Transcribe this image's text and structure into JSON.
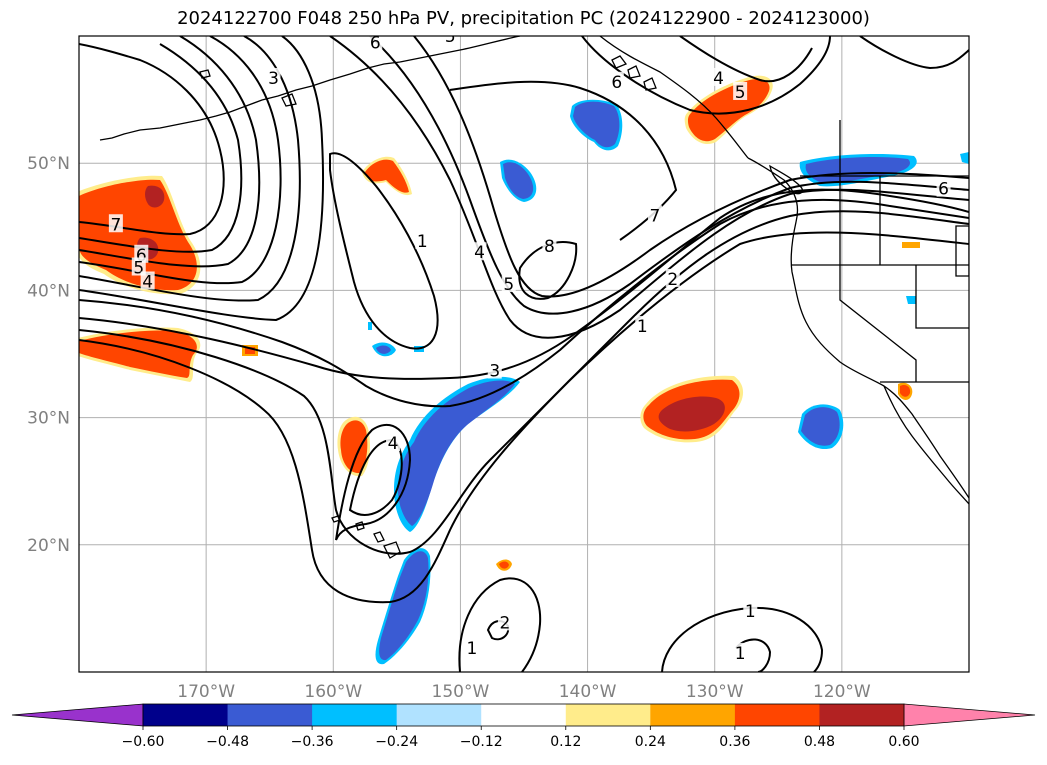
{
  "title": "2024122700 F048 250 hPa PV, precipitation PC (2024122900 - 2024123000)",
  "map": {
    "lon_range": [
      -180,
      -110
    ],
    "lat_range": [
      10,
      60
    ],
    "grid": true,
    "lat_ticks": [
      {
        "value": 20,
        "label": "20°N"
      },
      {
        "value": 30,
        "label": "30°N"
      },
      {
        "value": 40,
        "label": "40°N"
      },
      {
        "value": 50,
        "label": "50°N"
      }
    ],
    "lon_ticks": [
      {
        "value": -170,
        "label": "170°W"
      },
      {
        "value": -160,
        "label": "160°W"
      },
      {
        "value": -150,
        "label": "150°W"
      },
      {
        "value": -140,
        "label": "140°W"
      },
      {
        "value": -130,
        "label": "130°W"
      },
      {
        "value": -120,
        "label": "120°W"
      }
    ],
    "contour_labels": [
      {
        "text": "7",
        "lon": -177.1,
        "lat": 45.2
      },
      {
        "text": "6",
        "lon": -175.1,
        "lat": 42.8
      },
      {
        "text": "5",
        "lon": -175.3,
        "lat": 41.8
      },
      {
        "text": "4",
        "lon": -174.6,
        "lat": 40.7
      },
      {
        "text": "3",
        "lon": -164.7,
        "lat": 56.7
      },
      {
        "text": "6",
        "lon": -156.7,
        "lat": 59.5
      },
      {
        "text": "5",
        "lon": -150.8,
        "lat": 60.0
      },
      {
        "text": "1",
        "lon": -153.0,
        "lat": 43.9
      },
      {
        "text": "4",
        "lon": -148.5,
        "lat": 43.0
      },
      {
        "text": "5",
        "lon": -146.2,
        "lat": 40.5
      },
      {
        "text": "8",
        "lon": -143.0,
        "lat": 43.5
      },
      {
        "text": "7",
        "lon": -134.7,
        "lat": 45.9
      },
      {
        "text": "6",
        "lon": -137.7,
        "lat": 56.4
      },
      {
        "text": "4",
        "lon": -129.7,
        "lat": 56.7
      },
      {
        "text": "5",
        "lon": -128.0,
        "lat": 55.6
      },
      {
        "text": "6",
        "lon": -112.0,
        "lat": 48.0
      },
      {
        "text": "2",
        "lon": -133.3,
        "lat": 40.9
      },
      {
        "text": "1",
        "lon": -135.7,
        "lat": 37.2
      },
      {
        "text": "3",
        "lon": -147.3,
        "lat": 33.7
      },
      {
        "text": "4",
        "lon": -155.3,
        "lat": 28.0
      },
      {
        "text": "2",
        "lon": -146.5,
        "lat": 13.9
      },
      {
        "text": "1",
        "lon": -149.1,
        "lat": 11.9
      },
      {
        "text": "1",
        "lon": -127.2,
        "lat": 14.8
      },
      {
        "text": "1",
        "lon": -128.0,
        "lat": 11.5
      }
    ],
    "colors": {
      "positive_light": "#ffec8b",
      "positive_mid": "#ff4500",
      "positive_strong": "#b22222",
      "negative_mid": "#3a5bd3",
      "negative_light": "#00bfff",
      "coast": "#000000",
      "grid": "#b0b0b0"
    }
  },
  "colorbar": {
    "ticks": [
      "−0.60",
      "−0.48",
      "−0.36",
      "−0.24",
      "−0.12",
      "0.12",
      "0.24",
      "0.36",
      "0.48",
      "0.60"
    ],
    "colors": [
      "#9932cc",
      "#00008b",
      "#3a5bd3",
      "#00bfff",
      "#b0e2ff",
      "#ffffff",
      "#ffec8b",
      "#ffa500",
      "#ff4500",
      "#b22222",
      "#ff82ab"
    ],
    "extend": "both"
  }
}
